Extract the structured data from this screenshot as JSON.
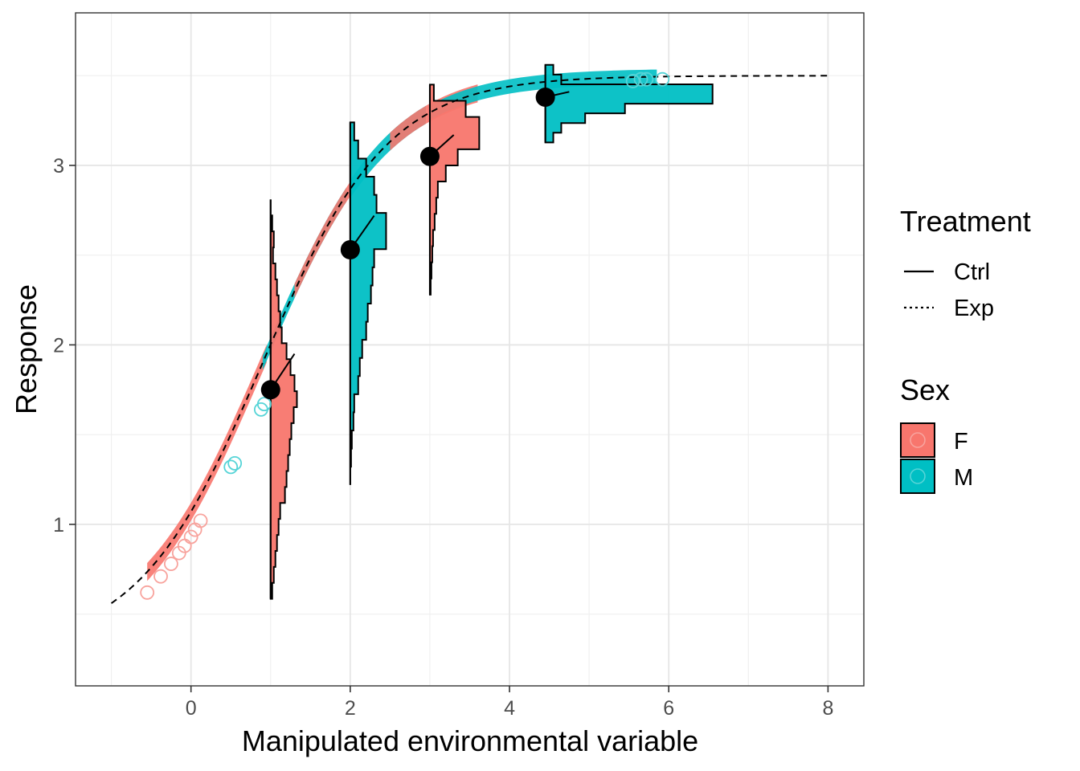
{
  "chart_data": {
    "type": "line",
    "xlabel": "Manipulated environmental variable",
    "ylabel": "Response",
    "xlim": [
      -1.45,
      8.45
    ],
    "ylim": [
      0.1,
      3.85
    ],
    "x_ticks": [
      0,
      2,
      4,
      6,
      8
    ],
    "y_ticks": [
      1,
      2,
      3
    ],
    "grid": true,
    "legend_position": "right",
    "colors": {
      "F": "#f8766d",
      "M": "#00bfc4",
      "mean": "#000000"
    },
    "curve": {
      "asymptote": 3.5,
      "k": 0.58,
      "x0": 0.9,
      "lower": 0.3
    },
    "treatment_legend": {
      "title": "Treatment",
      "entries": [
        {
          "label": "Ctrl",
          "linetype": "solid"
        },
        {
          "label": "Exp",
          "linetype": "dotted"
        }
      ]
    },
    "sex_legend": {
      "title": "Sex",
      "entries": [
        {
          "label": "F",
          "color": "#f8766d"
        },
        {
          "label": "M",
          "color": "#00bfc4"
        }
      ]
    },
    "fitted_line": {
      "linetype": "dashed",
      "x": [
        -1,
        8
      ]
    },
    "ribbons": [
      {
        "sex": "F",
        "x_from": -0.55,
        "x_to": 0.95,
        "half_width": 0.05
      },
      {
        "sex": "M",
        "x_from": 0.9,
        "x_to": 1.95,
        "half_width": 0.04
      },
      {
        "sex": "F",
        "x_from": 1.3,
        "x_to": 2.1,
        "half_width": 0.04
      },
      {
        "sex": "M",
        "x_from": 2.0,
        "x_to": 2.95,
        "half_width": 0.05
      },
      {
        "sex": "F",
        "x_from": 2.5,
        "x_to": 3.6,
        "half_width": 0.05
      },
      {
        "sex": "M",
        "x_from": 3.0,
        "x_to": 5.85,
        "half_width": 0.04
      }
    ],
    "observations": [
      {
        "x": -0.55,
        "y": 0.62,
        "sex": "F"
      },
      {
        "x": -0.38,
        "y": 0.71,
        "sex": "F"
      },
      {
        "x": -0.25,
        "y": 0.78,
        "sex": "F"
      },
      {
        "x": -0.15,
        "y": 0.84,
        "sex": "F"
      },
      {
        "x": -0.08,
        "y": 0.88,
        "sex": "F"
      },
      {
        "x": 0.0,
        "y": 0.93,
        "sex": "F"
      },
      {
        "x": 0.05,
        "y": 0.97,
        "sex": "F"
      },
      {
        "x": 0.12,
        "y": 1.02,
        "sex": "F"
      },
      {
        "x": 0.5,
        "y": 1.32,
        "sex": "M"
      },
      {
        "x": 0.55,
        "y": 1.34,
        "sex": "M"
      },
      {
        "x": 0.88,
        "y": 1.64,
        "sex": "M"
      },
      {
        "x": 0.92,
        "y": 1.67,
        "sex": "M"
      },
      {
        "x": 5.55,
        "y": 3.47,
        "sex": "M"
      },
      {
        "x": 5.65,
        "y": 3.48,
        "sex": "M"
      },
      {
        "x": 5.72,
        "y": 3.48,
        "sex": "M"
      },
      {
        "x": 5.92,
        "y": 3.48,
        "sex": "M"
      }
    ],
    "means": [
      {
        "x": 1.0,
        "y": 1.75,
        "ctrl_to": 1.3,
        "ctrl_to_y": 1.95
      },
      {
        "x": 2.0,
        "y": 2.53,
        "ctrl_to": 2.3,
        "ctrl_to_y": 2.72
      },
      {
        "x": 3.0,
        "y": 3.05,
        "ctrl_to": 3.3,
        "ctrl_to_y": 3.17
      },
      {
        "x": 4.45,
        "y": 3.38,
        "ctrl_to": 4.75,
        "ctrl_to_y": 3.41
      }
    ],
    "histograms": [
      {
        "sex": "F",
        "x": 1.0,
        "top": 2.81,
        "widths": [
          0.0,
          0.02,
          0.04,
          0.03,
          0.06,
          0.08,
          0.1,
          0.12,
          0.14,
          0.2,
          0.25,
          0.3,
          0.33,
          0.29,
          0.26,
          0.24,
          0.22,
          0.2,
          0.18,
          0.12,
          0.1,
          0.08,
          0.06,
          0.04,
          0.02
        ],
        "bin": 0.089
      },
      {
        "sex": "M",
        "x": 2.0,
        "top": 3.24,
        "widths": [
          0.05,
          0.1,
          0.2,
          0.3,
          0.33,
          0.45,
          0.45,
          0.3,
          0.28,
          0.26,
          0.22,
          0.2,
          0.15,
          0.12,
          0.1,
          0.05,
          0.04,
          0.02,
          0.01,
          0.0
        ],
        "bin": 0.101
      },
      {
        "sex": "F",
        "x": 3.0,
        "top": 3.45,
        "widths": [
          0.05,
          0.45,
          0.62,
          0.62,
          0.35,
          0.2,
          0.1,
          0.08,
          0.06,
          0.04,
          0.03,
          0.02,
          0.01
        ],
        "bin": 0.09
      },
      {
        "sex": "M",
        "x": 4.45,
        "top": 3.56,
        "widths": [
          0.1,
          0.2,
          2.1,
          2.1,
          1.0,
          0.5,
          0.2,
          0.1
        ],
        "bin": 0.054
      }
    ]
  }
}
